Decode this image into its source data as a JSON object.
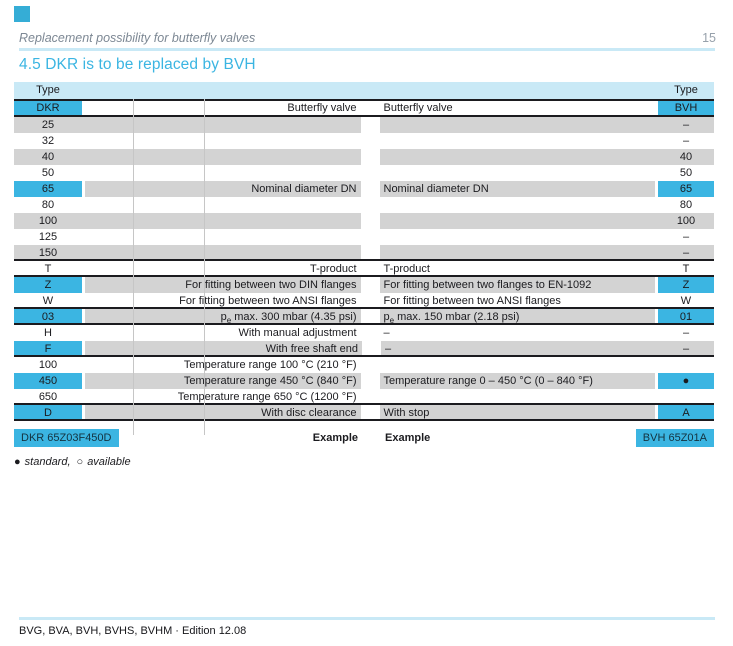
{
  "page": {
    "running_title": "Replacement possibility for butterfly valves",
    "page_number": "15",
    "section_title": "4.5 DKR is to be replaced by BVH",
    "footer_text": "BVG, BVA, BVH, BVHS, BVHM · Edition 12.08"
  },
  "colors": {
    "accent_cyan": "#3bb5e2",
    "light_cyan_band": "#c9e9f6",
    "row_gray": "#d3d3d3",
    "separator_black": "#1b1b1f",
    "running_title_gray": "#7d8894"
  },
  "table": {
    "type_left": "Type",
    "type_right": "Type",
    "dkr_header": "DKR",
    "bvh_header": "BVH",
    "left_subject": "Butterfly valve",
    "right_subject": "Butterfly valve",
    "rows": [
      {
        "dkr": "25",
        "dkr_desc": "",
        "bvh_desc": "",
        "bvh": "–"
      },
      {
        "dkr": "32",
        "dkr_desc": "",
        "bvh_desc": "",
        "bvh": "–"
      },
      {
        "dkr": "40",
        "dkr_desc": "",
        "bvh_desc": "",
        "bvh": "40"
      },
      {
        "dkr": "50",
        "dkr_desc": "",
        "bvh_desc": "",
        "bvh": "50"
      },
      {
        "dkr": "65",
        "dkr_desc": "Nominal diameter DN",
        "bvh_desc": "Nominal diameter DN",
        "bvh": "65"
      },
      {
        "dkr": "80",
        "dkr_desc": "",
        "bvh_desc": "",
        "bvh": "80"
      },
      {
        "dkr": "100",
        "dkr_desc": "",
        "bvh_desc": "",
        "bvh": "100"
      },
      {
        "dkr": "125",
        "dkr_desc": "",
        "bvh_desc": "",
        "bvh": "–"
      },
      {
        "dkr": "150",
        "dkr_desc": "",
        "bvh_desc": "",
        "bvh": "–"
      },
      {
        "dkr": "T",
        "dkr_desc": "T-product",
        "bvh_desc": "T-product",
        "bvh": "T"
      },
      {
        "dkr": "Z",
        "dkr_desc": "For fitting between two DIN flanges",
        "bvh_desc": "For fitting between two flanges to EN-1092",
        "bvh": "Z"
      },
      {
        "dkr": "W",
        "dkr_desc": "For fitting between two ANSI flanges",
        "bvh_desc": "For fitting between two ANSI flanges",
        "bvh": "W"
      },
      {
        "dkr": "03",
        "dkr_desc_pre": "p",
        "dkr_desc_sub": "e",
        "dkr_desc_rest": " max. 300 mbar (4.35 psi)",
        "bvh_desc_pre": "p",
        "bvh_desc_sub": "e",
        "bvh_desc_rest": " max. 150 mbar (2.18 psi)",
        "bvh": "01"
      },
      {
        "dkr": "H",
        "dkr_desc": "With manual adjustment",
        "bvh_desc": "–",
        "bvh": "–"
      },
      {
        "dkr": "F",
        "dkr_desc": "With free shaft end",
        "bvh_desc": "–",
        "bvh": "–"
      },
      {
        "dkr": "100",
        "dkr_desc": "Temperature range 100 °C (210 °F)",
        "bvh_desc": "",
        "bvh": ""
      },
      {
        "dkr": "450",
        "dkr_desc": "Temperature range 450 °C (840 °F)",
        "bvh_desc": "Temperature range 0 – 450 °C (0 – 840 °F)",
        "bvh": "●"
      },
      {
        "dkr": "650",
        "dkr_desc": "Temperature range 650 °C (1200 °F)",
        "bvh_desc": "",
        "bvh": ""
      },
      {
        "dkr": "D",
        "dkr_desc": "With disc clearance",
        "bvh_desc": "With stop",
        "bvh": "A"
      }
    ],
    "example": {
      "dkr_code": "DKR 65Z03F450D",
      "left_label": "Example",
      "right_label": "Example",
      "bvh_code": "BVH 65Z01A"
    }
  },
  "legend": {
    "filled_symbol": "●",
    "filled_label": "standard,",
    "open_symbol": "○",
    "open_label": "available"
  }
}
